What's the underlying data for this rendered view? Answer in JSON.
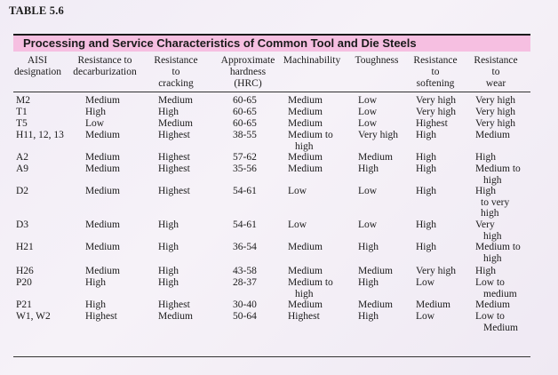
{
  "table_label": "TABLE 5.6",
  "title": "Processing and Service Characteristics of Common Tool and Die Steels",
  "headers": [
    [
      "AISI",
      "designation"
    ],
    [
      "Resistance to",
      "decarburization"
    ],
    [
      "Resistance",
      "to",
      "cracking"
    ],
    [
      "Approximate",
      "hardness",
      "(HRC)"
    ],
    [
      "Machinability"
    ],
    [
      "Toughness"
    ],
    [
      "Resistance",
      "to",
      "softening"
    ],
    [
      "Resistance",
      "to",
      "wear"
    ]
  ],
  "rows": [
    [
      "M2",
      "Medium",
      "Medium",
      "60-65",
      "Medium",
      "Low",
      "Very high",
      "Very high"
    ],
    [
      "T1",
      "High",
      "High",
      "60-65",
      "Medium",
      "Low",
      "Very high",
      "Very high"
    ],
    [
      "T5",
      "Low",
      "Medium",
      "60-65",
      "Medium",
      "Low",
      "Highest",
      "Very high"
    ],
    [
      "H11, 12, 13",
      "Medium",
      "Highest",
      "38-55",
      "Medium to high",
      "Very high",
      "High",
      "Medium"
    ],
    [
      "A2",
      "Medium",
      "Highest",
      "57-62",
      "Medium",
      "Medium",
      "High",
      "High"
    ],
    [
      "A9",
      "Medium",
      "Highest",
      "35-56",
      "Medium",
      "High",
      "High",
      "Medium to high"
    ],
    [
      "D2",
      "Medium",
      "Highest",
      "54-61",
      "Low",
      "Low",
      "High",
      "High to very high"
    ],
    [
      "D3",
      "Medium",
      "High",
      "54-61",
      "Low",
      "Low",
      "High",
      "Very high"
    ],
    [
      "H21",
      "Medium",
      "High",
      "36-54",
      "Medium",
      "High",
      "High",
      "Medium to high"
    ],
    [
      "H26",
      "Medium",
      "High",
      "43-58",
      "Medium",
      "Medium",
      "Very high",
      "High"
    ],
    [
      "P20",
      "High",
      "High",
      "28-37",
      "Medium to high",
      "High",
      "Low",
      "Low to medium"
    ],
    [
      "P21",
      "High",
      "Highest",
      "30-40",
      "Medium",
      "Medium",
      "Medium",
      "Medium"
    ],
    [
      "W1, W2",
      "Highest",
      "Medium",
      "50-64",
      "Highest",
      "High",
      "Low",
      "Low to Medium"
    ]
  ]
}
